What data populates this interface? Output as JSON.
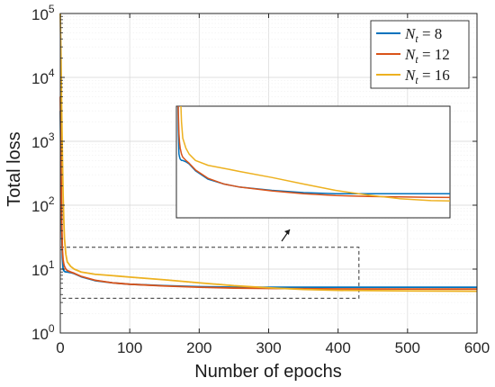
{
  "chart_data": {
    "type": "line",
    "title": "",
    "xlabel": "Number of epochs",
    "ylabel": "Total loss",
    "xlim": [
      0,
      600
    ],
    "ylim": [
      1,
      100000
    ],
    "yscale": "log",
    "grid": true,
    "legend_position": "top-right",
    "x_ticks": [
      "0",
      "100",
      "200",
      "300",
      "400",
      "500",
      "600"
    ],
    "y_ticks": [
      {
        "base": "10",
        "exp": "0"
      },
      {
        "base": "10",
        "exp": "1"
      },
      {
        "base": "10",
        "exp": "2"
      },
      {
        "base": "10",
        "exp": "3"
      },
      {
        "base": "10",
        "exp": "4"
      },
      {
        "base": "10",
        "exp": "5"
      }
    ],
    "colors": {
      "Nt8": "#0072BD",
      "Nt12": "#D95319",
      "Nt16": "#EDB120"
    },
    "series": [
      {
        "name": "Nt = 8",
        "legend": {
          "base": "N",
          "sub": "t",
          "rest": " = 8"
        },
        "color": "#0072BD",
        "x": [
          0,
          1,
          2,
          3,
          4,
          5,
          6,
          8,
          10,
          15,
          20,
          30,
          50,
          75,
          100,
          150,
          200,
          250,
          300,
          400,
          500,
          600
        ],
        "y": [
          3000,
          300,
          40,
          15,
          10,
          9.5,
          9.2,
          9.0,
          9.0,
          8.8,
          8.5,
          7.6,
          6.6,
          6.1,
          5.8,
          5.5,
          5.3,
          5.2,
          5.2,
          5.2,
          5.2,
          5.2
        ]
      },
      {
        "name": "Nt = 12",
        "legend": {
          "base": "N",
          "sub": "t",
          "rest": " = 12"
        },
        "color": "#D95319",
        "x": [
          0,
          1,
          2,
          3,
          4,
          5,
          6,
          8,
          10,
          15,
          20,
          30,
          50,
          75,
          100,
          150,
          200,
          250,
          300,
          400,
          500,
          600
        ],
        "y": [
          5000,
          500,
          60,
          20,
          14,
          12,
          11,
          10,
          9.5,
          9.0,
          8.6,
          7.7,
          6.7,
          6.1,
          5.8,
          5.45,
          5.2,
          5.05,
          4.98,
          4.9,
          4.88,
          4.87
        ]
      },
      {
        "name": "Nt = 16",
        "legend": {
          "base": "N",
          "sub": "t",
          "rest": " = 16"
        },
        "color": "#EDB120",
        "x": [
          0,
          1,
          2,
          3,
          4,
          5,
          6,
          8,
          10,
          15,
          20,
          30,
          50,
          75,
          100,
          150,
          200,
          250,
          300,
          350,
          400,
          500,
          600
        ],
        "y": [
          100000,
          20000,
          3000,
          600,
          150,
          60,
          30,
          17,
          13,
          11,
          10,
          9,
          8.3,
          7.9,
          7.5,
          6.8,
          6.1,
          5.5,
          5.1,
          4.8,
          4.65,
          4.55,
          4.5
        ]
      }
    ],
    "annotations": [
      {
        "type": "zoom-box",
        "description": "dashed region magnified in inset"
      },
      {
        "type": "inset",
        "description": "magnified view of curves for epochs ~0-430"
      },
      {
        "type": "arrow",
        "description": "points from dashed region to inset"
      }
    ]
  }
}
